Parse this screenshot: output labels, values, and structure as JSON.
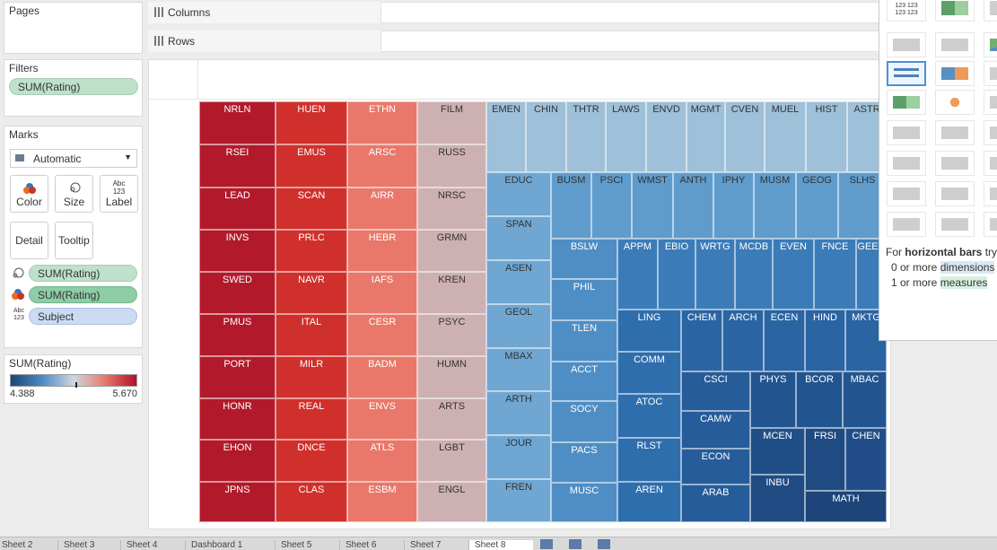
{
  "pages": {
    "title": "Pages"
  },
  "filters": {
    "title": "Filters",
    "pill": "SUM(Rating)"
  },
  "marks": {
    "title": "Marks",
    "type_select": "Automatic",
    "buttons": {
      "color": "Color",
      "size": "Size",
      "label": "Label",
      "detail": "Detail",
      "tooltip": "Tooltip"
    },
    "label_icon_text": "Abc\n123",
    "pills": [
      {
        "icon": "size-icon",
        "text": "SUM(Rating)"
      },
      {
        "icon": "color-icon",
        "text": "SUM(Rating)"
      },
      {
        "icon": "label-icon",
        "icon_text": "Abc 123",
        "text": "Subject"
      }
    ]
  },
  "legend": {
    "title": "SUM(Rating)",
    "min": "4.388",
    "max": "5.670"
  },
  "shelves": {
    "columns": "Columns",
    "rows": "Rows"
  },
  "show_me": {
    "hint_prefix": "For ",
    "hint_bold": "horizontal bars",
    "hint_suffix": " try",
    "line1_prefix": "0 or more ",
    "line1_hl": "dimensions",
    "line2_prefix": "1 or more ",
    "line2_hl": "measures",
    "text_table_glyph": "123"
  },
  "colors": {
    "red_dark": "#a0102a",
    "red": "#cf2a2a",
    "pink": "#d9b3b3",
    "grayblue": "#b8c4cc",
    "blue_light": "#8db8d8",
    "blue_dark": "#1f4a82"
  },
  "chart_data": {
    "type": "treemap",
    "legend_range": [
      4.388,
      5.67
    ],
    "labels": [
      "NRLN",
      "RSEI",
      "LEAD",
      "INVS",
      "SWED",
      "PMUS",
      "PORT",
      "HONR",
      "EHON",
      "JPNS",
      "HUEN",
      "EMUS",
      "SCAN",
      "PRLC",
      "NAVR",
      "ITAL",
      "MILR",
      "REAL",
      "DNCE",
      "CLAS",
      "ETHN",
      "ARSC",
      "AIRR",
      "HEBR",
      "IAFS",
      "CESR",
      "BADM",
      "ENVS",
      "ATLS",
      "ESBM",
      "FILM",
      "RUSS",
      "NRSC",
      "GRMN",
      "KREN",
      "PSYC",
      "HUMN",
      "ARTS",
      "LGBT",
      "ENGL",
      "EMEN",
      "CHIN",
      "THTR",
      "LAWS",
      "ENVD",
      "MGMT",
      "CVEN",
      "MUEL",
      "HIST",
      "ASTR",
      "EDUC",
      "SPAN",
      "ASEN",
      "GEOL",
      "MBAX",
      "ARTH",
      "JOUR",
      "FREN",
      "BUSM",
      "PSCI",
      "WMST",
      "ANTH",
      "IPHY",
      "MUSM",
      "GEOG",
      "SLHS",
      "BSLW",
      "PHIL",
      "TLEN",
      "ACCT",
      "SOCY",
      "PACS",
      "MUSC",
      "APPM",
      "EBIO",
      "WRTG",
      "MCDB",
      "EVEN",
      "FNCE",
      "GEEN",
      "LING",
      "COMM",
      "ATOC",
      "RLST",
      "AREN",
      "CHEM",
      "ARCH",
      "ECEN",
      "HIND",
      "MKTG",
      "CSCI",
      "CAMW",
      "ECON",
      "ARAB",
      "PHYS",
      "BCOR",
      "MBAC",
      "MCEN",
      "INBU",
      "FRSI",
      "CHEN",
      "MATH"
    ]
  },
  "sheet_tabs": [
    "Sheet 2",
    "Sheet 3",
    "Sheet 4",
    "Dashboard 1",
    "Sheet 5",
    "Sheet 6",
    "Sheet 7",
    "Sheet 8"
  ]
}
